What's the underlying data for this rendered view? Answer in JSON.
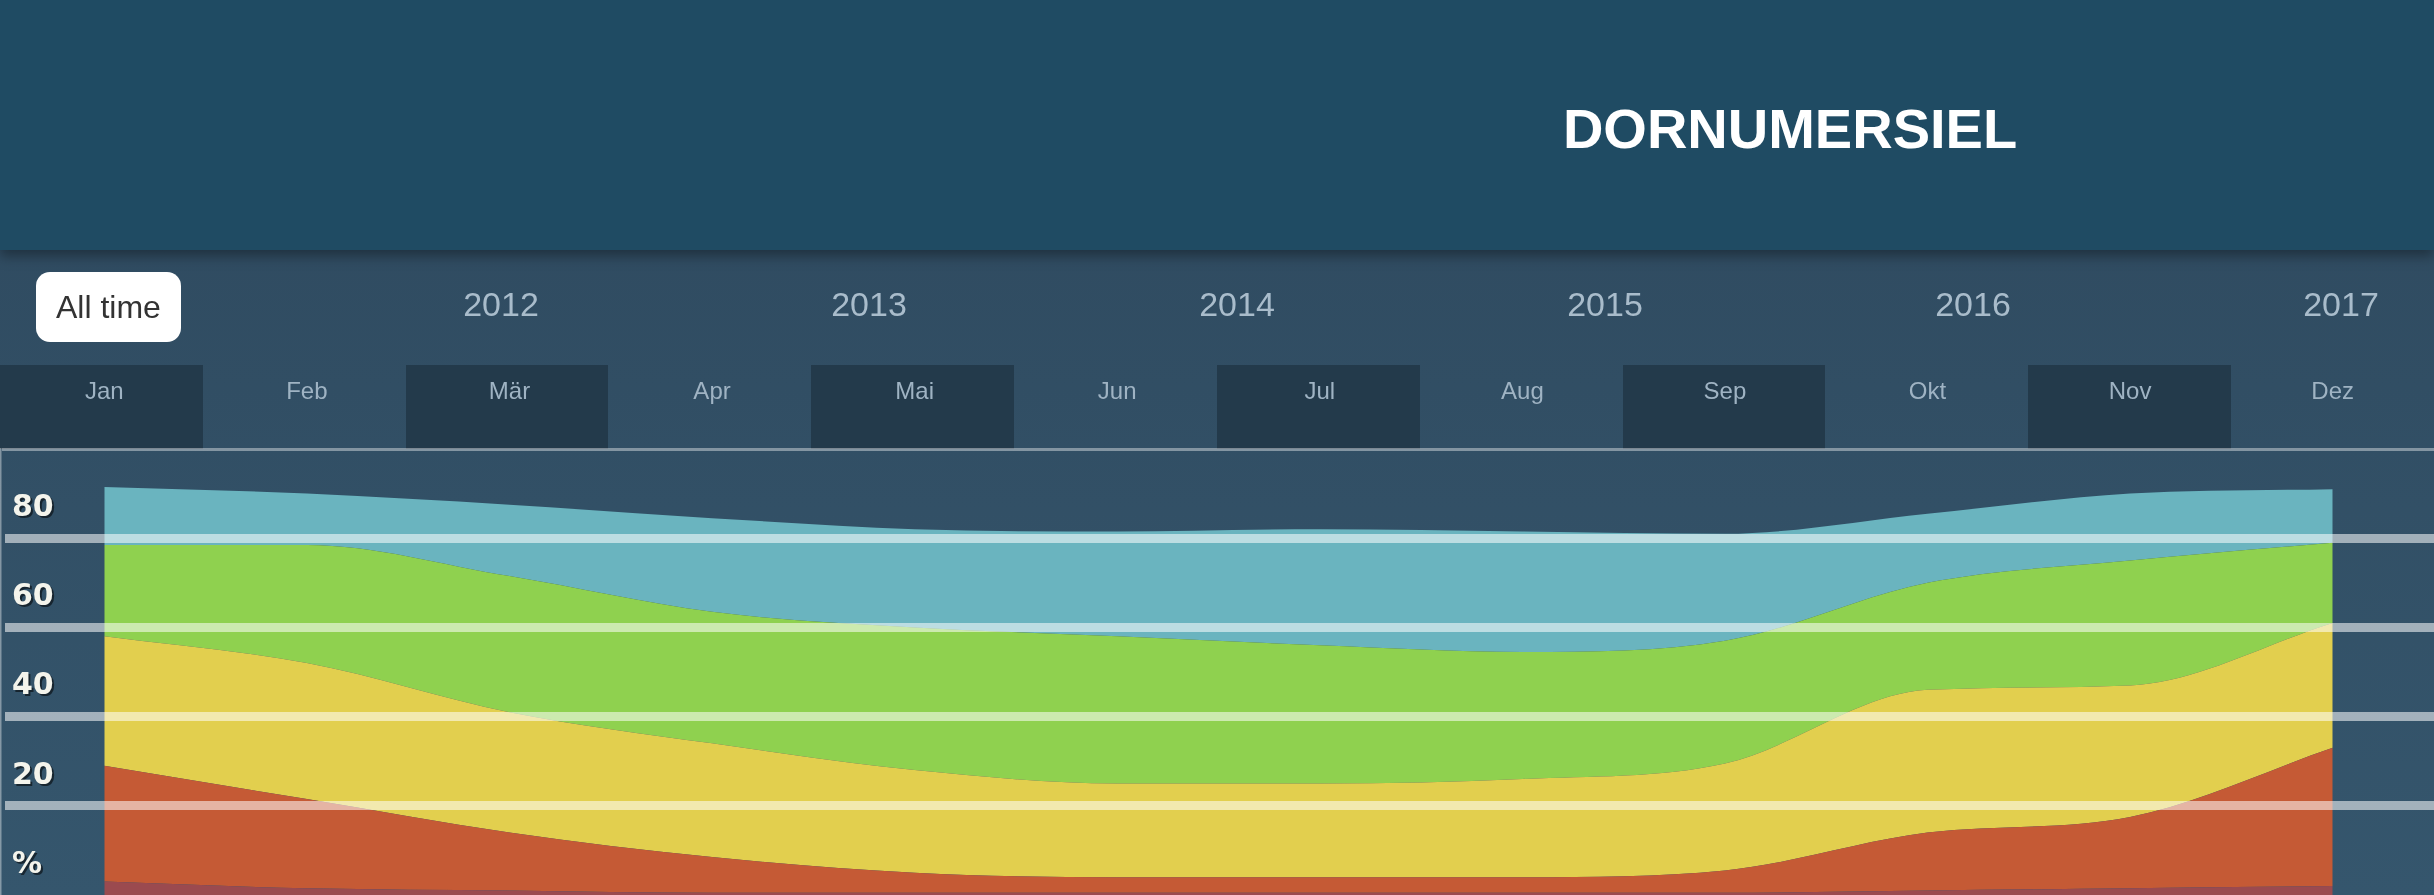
{
  "chart_data": {
    "type": "area",
    "title": "DORNUMERSIEL",
    "annotations": [
      "All time",
      "2012",
      "2013",
      "2014",
      "2015",
      "2016",
      "2017"
    ],
    "categories": [
      "Jan",
      "Feb",
      "Mär",
      "Apr",
      "Mai",
      "Jun",
      "Jul",
      "Aug",
      "Sep",
      "Okt",
      "Nov",
      "Dez"
    ],
    "stacked": true,
    "ylim": [
      0,
      100
    ],
    "yticks": [
      {
        "value": 0,
        "label": "%"
      },
      20,
      40,
      60,
      80
    ],
    "grid": "y",
    "legend": false,
    "series": [
      {
        "color": "#9b4a4f",
        "values": [
          3,
          1.5,
          1,
          0.5,
          0.5,
          0.5,
          0.5,
          0.5,
          0.5,
          1,
          1.5,
          2
        ]
      },
      {
        "color": "#c55a35",
        "values": [
          26,
          20,
          13,
          8,
          4.5,
          3.5,
          3.5,
          3.5,
          5,
          13,
          16,
          31
        ]
      },
      {
        "color": "#e2cf4e",
        "values": [
          29,
          30.5,
          27,
          25.5,
          23,
          21,
          21,
          22,
          24,
          32,
          29.5,
          28
        ]
      },
      {
        "color": "#8fd14f",
        "values": [
          20.5,
          26.5,
          30.5,
          29.5,
          32,
          33,
          31,
          28.5,
          27.5,
          24,
          28,
          18
        ]
      },
      {
        "color": "#6ab4bf",
        "values": [
          13,
          11.5,
          16,
          21,
          22,
          23.5,
          26,
          27,
          24,
          15.5,
          15,
          12
        ]
      }
    ]
  }
}
